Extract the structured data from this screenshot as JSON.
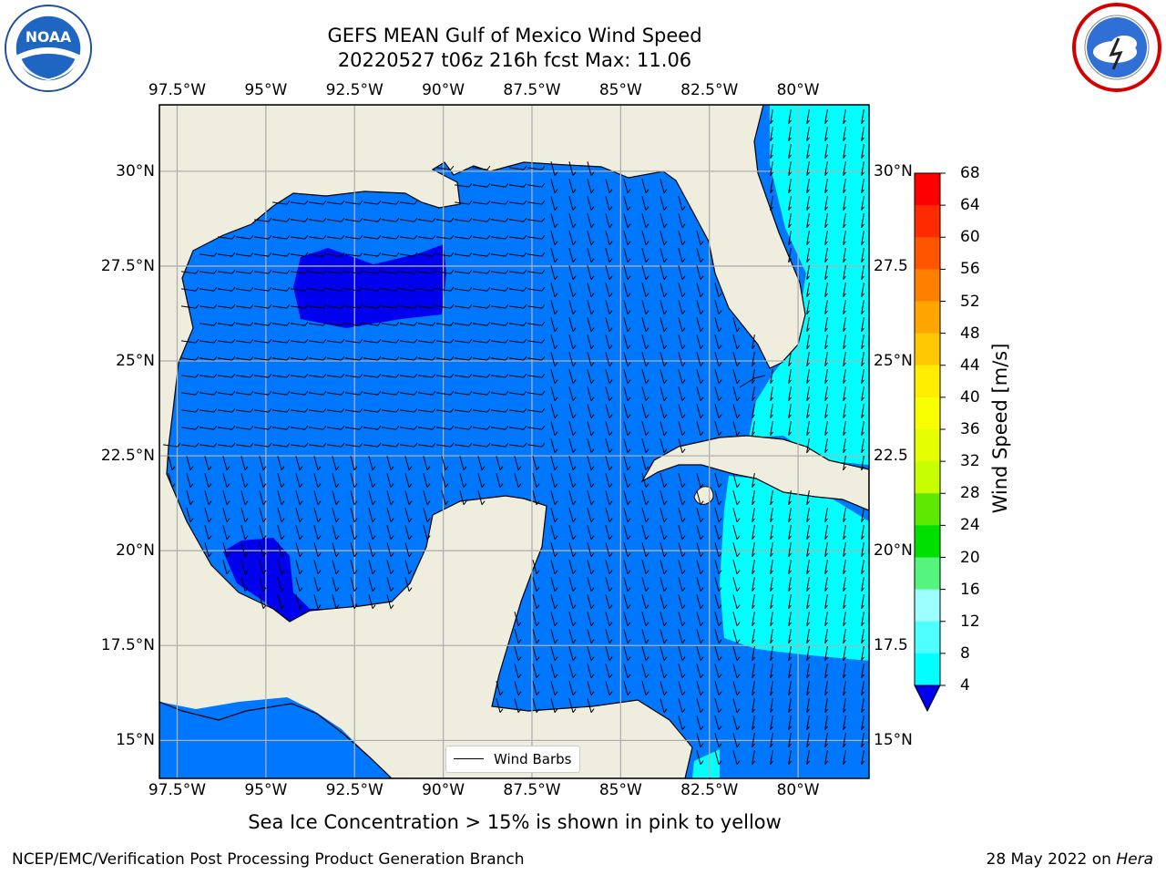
{
  "title": {
    "line1": "GEFS MEAN Gulf of Mexico Wind Speed",
    "line2": "20220527 t06z 216h fcst   Max: 11.06"
  },
  "logos": {
    "left": {
      "name": "noaa-logo",
      "text": "NOAA",
      "ring_text": "NATIONAL OCEANIC AND ATMOSPHERIC ADMINISTRATION · U.S. DEPARTMENT OF COMMERCE"
    },
    "right": {
      "name": "nws-logo",
      "ring_text": "NATIONAL WEATHER SERVICE"
    }
  },
  "map": {
    "lon_range": [
      -98.0,
      -78.0
    ],
    "lat_range": [
      14.0,
      31.75
    ],
    "lon_ticks": [
      "97.5°W",
      "95°W",
      "92.5°W",
      "90°W",
      "87.5°W",
      "85°W",
      "82.5°W",
      "80°W"
    ],
    "lat_ticks_left": [
      "30°N",
      "27.5°N",
      "25°N",
      "22.5°N",
      "20°N",
      "17.5°N",
      "15°N"
    ],
    "lat_ticks_right": [
      "30°N",
      "27.5",
      "25°N",
      "22.5",
      "20°N",
      "17.5",
      "15°N"
    ],
    "colors": {
      "land": "#efedde",
      "ocean_low": "#0077ff",
      "ocean_min": "#0000ee",
      "ocean_high": "#00ffff",
      "grid": "#b0b0b0"
    },
    "legend": "Wind Barbs"
  },
  "colorbar": {
    "label": "Wind Speed [m/s]",
    "ticks": [
      "68",
      "64",
      "60",
      "56",
      "52",
      "48",
      "44",
      "40",
      "36",
      "32",
      "28",
      "24",
      "20",
      "16",
      "12",
      "8",
      "4"
    ],
    "colors": [
      "#ff0000",
      "#ff2a00",
      "#ff5500",
      "#ff8000",
      "#ffa500",
      "#ffc800",
      "#ffee00",
      "#f7ff00",
      "#e6ff00",
      "#c8ff00",
      "#5fe800",
      "#00e000",
      "#55f57d",
      "#9dffff",
      "#4dffff",
      "#00ffff",
      "#0077ff"
    ],
    "extend_color": "#0000ee"
  },
  "notes": {
    "sea_ice": "Sea Ice Concentration > 15% is shown in pink to yellow",
    "credit": "NCEP/EMC/Verification Post Processing Product Generation Branch",
    "date": "28 May 2022 on ",
    "machine": "Hera"
  }
}
